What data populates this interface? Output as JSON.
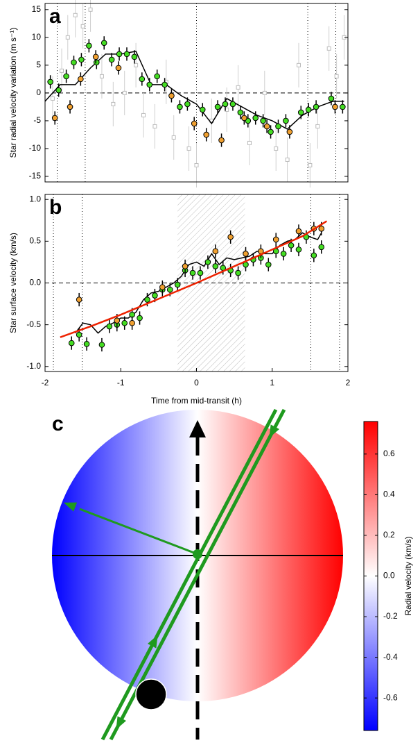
{
  "chart_data": [
    {
      "type": "scatter",
      "label": "a",
      "ylabel": "Star radial velocity variation (m s⁻¹)",
      "xlim": [
        -2,
        2
      ],
      "ylim": [
        -16,
        16.1
      ],
      "yticks": [
        -15,
        -10,
        -5,
        0,
        5,
        10,
        15
      ],
      "vlines": [
        -1.84,
        -1.47,
        0,
        1.47,
        1.84
      ],
      "hline": 0,
      "series": [
        {
          "marker": "square",
          "color": "#bbbbbb",
          "x": [
            -1.9,
            -1.78,
            -1.7,
            -1.6,
            -1.5,
            -1.4,
            -1.25,
            -1.1,
            -0.95,
            -0.8,
            -0.7,
            -0.55,
            -0.4,
            -0.3,
            -0.1,
            0,
            0.2,
            0.4,
            0.55,
            0.7,
            0.9,
            1.05,
            1.2,
            1.35,
            1.5,
            1.6,
            1.75,
            1.85,
            1.95
          ],
          "values": [
            -1,
            4,
            10,
            14,
            12,
            15,
            3,
            -2,
            0,
            5,
            -4,
            -6,
            2,
            -8,
            -10,
            -13,
            -5,
            -3,
            1,
            -9,
            0,
            -10,
            -12,
            5,
            -13,
            -6,
            8,
            3,
            10
          ],
          "errors": [
            4,
            4,
            4,
            4,
            4,
            4,
            4,
            4,
            4,
            4,
            4,
            4,
            4,
            4,
            4,
            4,
            4,
            4,
            4,
            4,
            4,
            4,
            4,
            4,
            4,
            4,
            4,
            4,
            4
          ]
        },
        {
          "marker": "line",
          "color": "#000000",
          "x": [
            -2,
            -1.8,
            -1.6,
            -1.4,
            -1.2,
            -1.0,
            -0.8,
            -0.6,
            -0.4,
            -0.2,
            0,
            0.2,
            0.4,
            0.6,
            0.8,
            1.0,
            1.2,
            1.4,
            1.6,
            1.8,
            1.95
          ],
          "values": [
            -1.5,
            1.5,
            1.5,
            4.5,
            7,
            7,
            7.5,
            1.5,
            1.5,
            -0.5,
            -2,
            -5.5,
            -1,
            -2.5,
            -4,
            -5,
            -6.5,
            -4,
            -2.5,
            -1.5,
            -1.5
          ]
        },
        {
          "marker": "circle",
          "color": "#44dd22",
          "x": [
            -1.93,
            -1.82,
            -1.72,
            -1.62,
            -1.52,
            -1.42,
            -1.32,
            -1.22,
            -1.12,
            -1.02,
            -0.92,
            -0.82,
            -0.72,
            -0.62,
            -0.52,
            -0.42,
            -0.22,
            -0.12,
            0.08,
            0.28,
            0.38,
            0.48,
            0.58,
            0.68,
            0.78,
            0.88,
            0.98,
            1.08,
            1.18,
            1.38,
            1.48,
            1.58,
            1.78,
            1.93
          ],
          "values": [
            2,
            0.5,
            3,
            5.5,
            6,
            8.5,
            5.5,
            9,
            6,
            7,
            7,
            6.5,
            2.5,
            1.5,
            3,
            1.5,
            -2.5,
            -2,
            -3,
            -2.5,
            -2,
            -2,
            -3.5,
            -5,
            -4.5,
            -5,
            -7,
            -6,
            -5,
            -3.5,
            -3,
            -2.5,
            -1,
            -2.5
          ],
          "errors": [
            1.2,
            1.2,
            1.2,
            1.2,
            1.2,
            1.2,
            1.2,
            1.2,
            1.2,
            1.2,
            1.2,
            1.2,
            1.2,
            1.2,
            1.2,
            1.2,
            1.2,
            1.2,
            1.2,
            1.2,
            1.2,
            1.2,
            1.2,
            1.2,
            1.2,
            1.2,
            1.2,
            1.2,
            1.2,
            1.2,
            1.2,
            1.2,
            1.2,
            1.2
          ]
        },
        {
          "marker": "circle",
          "color": "#f0a030",
          "x": [
            -1.87,
            -1.67,
            -1.53,
            -1.33,
            -1.03,
            -0.33,
            -0.03,
            0.13,
            0.33,
            0.63,
            0.93,
            1.23,
            1.83
          ],
          "values": [
            -4.5,
            -2.5,
            2.5,
            6.5,
            4.5,
            -0.5,
            -5.5,
            -7.5,
            -8.5,
            -4.5,
            -6,
            -7,
            -2.5
          ],
          "errors": [
            1.2,
            1.2,
            1.2,
            1.2,
            1.2,
            1.2,
            1.2,
            1.2,
            1.2,
            1.2,
            1.2,
            1.2,
            1.2
          ]
        }
      ]
    },
    {
      "type": "scatter",
      "label": "b",
      "ylabel": "Star surface velocity (km/s)",
      "xlabel": "Time from mid-transit (h)",
      "xlim": [
        -2,
        2
      ],
      "xticks": [
        -2,
        -1,
        0,
        1,
        2
      ],
      "ylim": [
        -1.06,
        1.06
      ],
      "yticks": [
        {
          "value": -1,
          "label": "-1.0"
        },
        -0.5,
        {
          "value": 0,
          "label": "0.0"
        },
        0.5,
        {
          "value": 1,
          "label": "1.0"
        }
      ],
      "vlines": [
        -1.89,
        -1.51,
        1.51,
        1.89
      ],
      "hline": 0,
      "shade": [
        -0.25,
        0.64
      ],
      "series": [
        {
          "marker": "line",
          "color": "#000000",
          "x": [
            -1.6,
            -1.5,
            -1.4,
            -1.3,
            -1.2,
            -1.1,
            -1.0,
            -0.9,
            -0.8,
            -0.7,
            -0.6,
            -0.5,
            -0.4,
            -0.3,
            -0.2,
            -0.1,
            0,
            0.1,
            0.2,
            0.3,
            0.4,
            0.5,
            0.6,
            0.7,
            0.8,
            0.9,
            1.0,
            1.1,
            1.2,
            1.3,
            1.4,
            1.5,
            1.6,
            1.65
          ],
          "values": [
            -0.6,
            -0.48,
            -0.5,
            -0.6,
            -0.52,
            -0.48,
            -0.42,
            -0.42,
            -0.35,
            -0.2,
            -0.12,
            -0.1,
            -0.05,
            0,
            0.08,
            0.22,
            0.25,
            0.2,
            0.35,
            0.22,
            0.3,
            0.28,
            0.3,
            0.32,
            0.38,
            0.35,
            0.35,
            0.45,
            0.5,
            0.52,
            0.6,
            0.55,
            0.52,
            0.6
          ]
        },
        {
          "marker": "circle",
          "color": "#44dd22",
          "x": [
            -1.65,
            -1.55,
            -1.45,
            -1.25,
            -1.15,
            -1.05,
            -0.95,
            -0.85,
            -0.75,
            -0.65,
            -0.55,
            -0.45,
            -0.35,
            -0.25,
            -0.15,
            -0.05,
            0.05,
            0.15,
            0.25,
            0.35,
            0.45,
            0.55,
            0.65,
            0.75,
            0.85,
            0.95,
            1.05,
            1.15,
            1.25,
            1.35,
            1.45,
            1.55,
            1.65
          ],
          "values": [
            -0.72,
            -0.62,
            -0.73,
            -0.74,
            -0.52,
            -0.5,
            -0.48,
            -0.38,
            -0.42,
            -0.2,
            -0.15,
            -0.08,
            -0.08,
            -0.02,
            0.15,
            0.12,
            0.12,
            0.25,
            0.2,
            0.18,
            0.15,
            0.12,
            0.22,
            0.28,
            0.3,
            0.22,
            0.38,
            0.35,
            0.45,
            0.4,
            0.55,
            0.33,
            0.43
          ],
          "errors": [
            0.08,
            0.08,
            0.08,
            0.08,
            0.08,
            0.08,
            0.08,
            0.08,
            0.08,
            0.08,
            0.08,
            0.08,
            0.08,
            0.08,
            0.08,
            0.08,
            0.08,
            0.08,
            0.08,
            0.08,
            0.08,
            0.08,
            0.08,
            0.08,
            0.08,
            0.08,
            0.08,
            0.08,
            0.08,
            0.08,
            0.08,
            0.08,
            0.08
          ]
        },
        {
          "marker": "circle",
          "color": "#f0a030",
          "x": [
            -1.55,
            -1.05,
            -0.85,
            -0.45,
            -0.15,
            0.25,
            0.45,
            0.65,
            0.85,
            1.05,
            1.35,
            1.55,
            1.65
          ],
          "values": [
            -0.2,
            -0.45,
            -0.48,
            -0.05,
            0.2,
            0.38,
            0.55,
            0.35,
            0.38,
            0.52,
            0.62,
            0.65,
            0.65
          ],
          "errors": [
            0.08,
            0.08,
            0.08,
            0.08,
            0.08,
            0.08,
            0.08,
            0.08,
            0.08,
            0.08,
            0.08,
            0.08,
            0.08
          ]
        },
        {
          "marker": "line",
          "color": "#ee2200",
          "width": 2.5,
          "x": [
            -1.8,
            -1.4,
            -1.0,
            -0.5,
            0,
            0.5,
            1.0,
            1.4,
            1.72
          ],
          "values": [
            -0.65,
            -0.52,
            -0.38,
            -0.19,
            0,
            0.2,
            0.4,
            0.56,
            0.74
          ]
        }
      ]
    },
    {
      "type": "colorbar",
      "label": "c",
      "ylabel": "Radial velocity (km/s)",
      "ylim": [
        -0.76,
        0.76
      ],
      "yticks": [
        -0.6,
        -0.4,
        -0.2,
        {
          "value": 0,
          "label": "0.0"
        },
        0.2,
        0.4,
        0.6
      ],
      "colormap": [
        "#0000ff",
        "#ffffff",
        "#ff0000"
      ]
    }
  ]
}
